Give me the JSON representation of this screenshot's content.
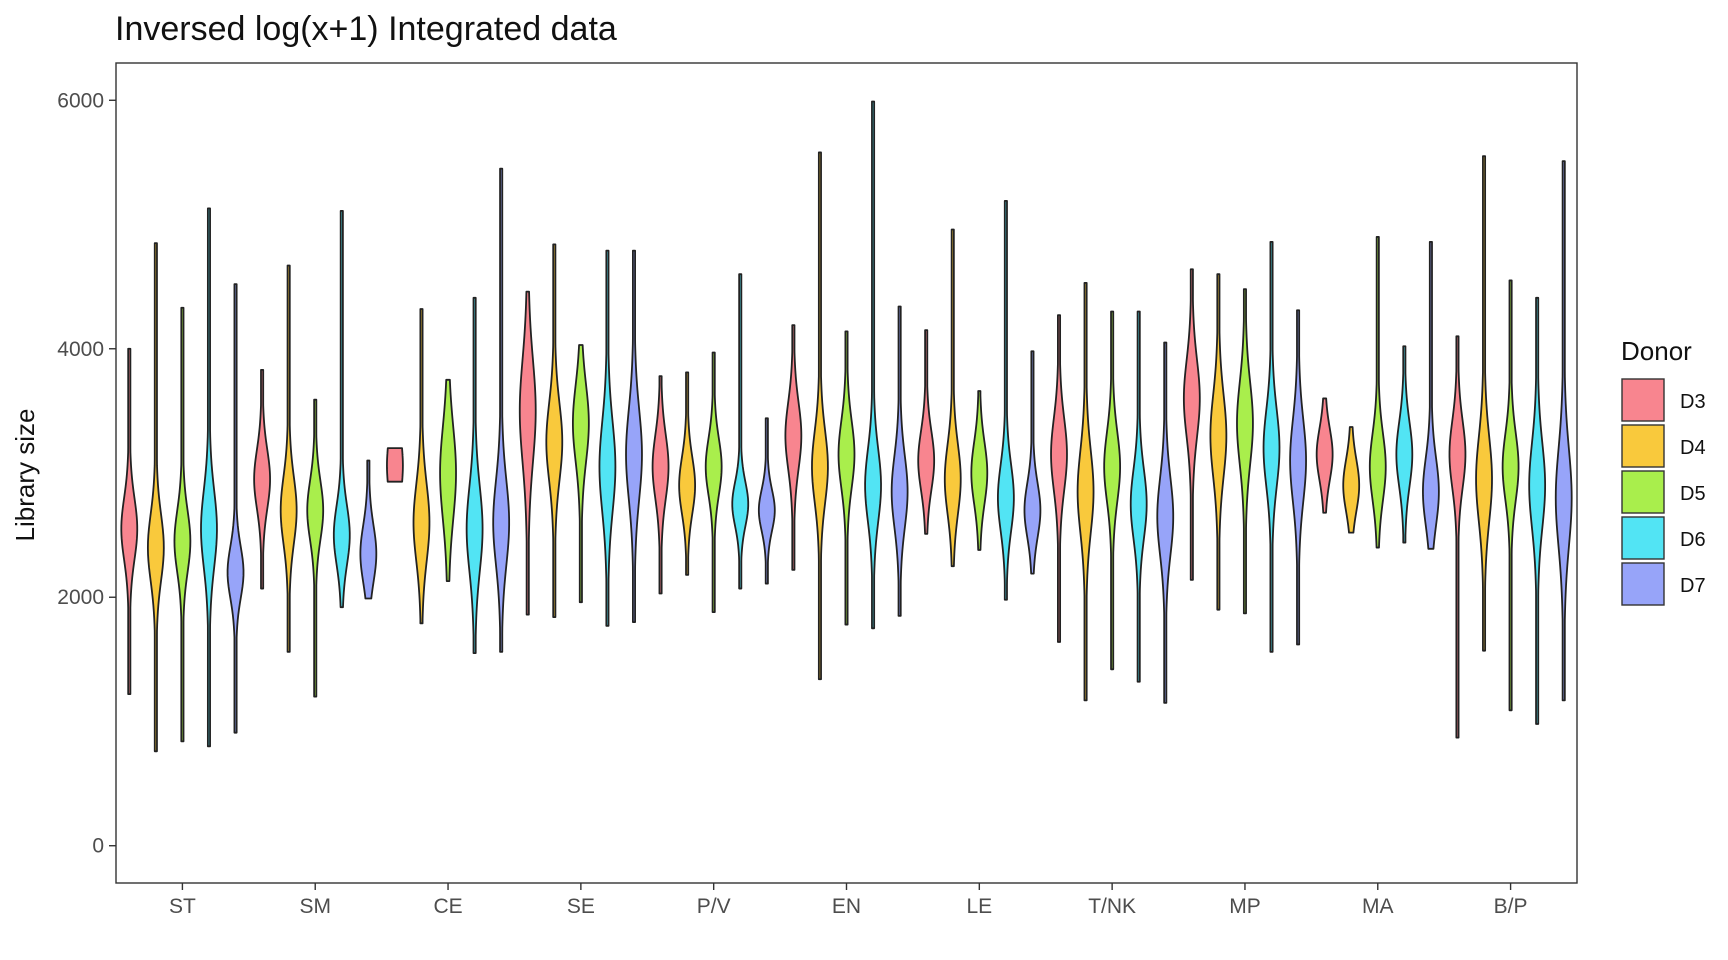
{
  "chart_data": {
    "type": "violin",
    "title": "Inversed log(x+1) Integrated data",
    "xlabel": "",
    "ylabel": "Library size",
    "ylim": [
      -300,
      6300
    ],
    "yticks": [
      0,
      2000,
      4000,
      6000
    ],
    "grid": false,
    "legend": {
      "title": "Donor",
      "placement": "right",
      "entries": [
        {
          "name": "D3",
          "color": "#F8858F"
        },
        {
          "name": "D4",
          "color": "#F9C93C"
        },
        {
          "name": "D5",
          "color": "#A9EE4C"
        },
        {
          "name": "D6",
          "color": "#52E4F4"
        },
        {
          "name": "D7",
          "color": "#97A4F9"
        }
      ]
    },
    "categories": [
      "ST",
      "SM",
      "CE",
      "SE",
      "P/V",
      "EN",
      "LE",
      "T/NK",
      "MP",
      "MA",
      "B/P"
    ],
    "violins": [
      {
        "category": "ST",
        "donor": "D3",
        "min": 1220,
        "max": 4000,
        "median": 2550,
        "spread": 240
      },
      {
        "category": "ST",
        "donor": "D4",
        "min": 760,
        "max": 4850,
        "median": 2400,
        "spread": 260
      },
      {
        "category": "ST",
        "donor": "D5",
        "min": 840,
        "max": 4330,
        "median": 2450,
        "spread": 240
      },
      {
        "category": "ST",
        "donor": "D6",
        "min": 800,
        "max": 5130,
        "median": 2550,
        "spread": 300
      },
      {
        "category": "ST",
        "donor": "D7",
        "min": 910,
        "max": 4520,
        "median": 2200,
        "spread": 200
      },
      {
        "category": "SM",
        "donor": "D3",
        "min": 2070,
        "max": 3830,
        "median": 2950,
        "spread": 230
      },
      {
        "category": "SM",
        "donor": "D4",
        "min": 1560,
        "max": 4670,
        "median": 2700,
        "spread": 260
      },
      {
        "category": "SM",
        "donor": "D5",
        "min": 1200,
        "max": 3590,
        "median": 2700,
        "spread": 230
      },
      {
        "category": "SM",
        "donor": "D6",
        "min": 1920,
        "max": 5110,
        "median": 2500,
        "spread": 230
      },
      {
        "category": "SM",
        "donor": "D7",
        "min": 1990,
        "max": 3100,
        "median": 2350,
        "spread": 220
      },
      {
        "category": "CE",
        "donor": "D3",
        "min": 2930,
        "max": 3200,
        "median": 3060,
        "spread": 110
      },
      {
        "category": "CE",
        "donor": "D4",
        "min": 1790,
        "max": 4320,
        "median": 2600,
        "spread": 300
      },
      {
        "category": "CE",
        "donor": "D5",
        "min": 2130,
        "max": 3750,
        "median": 3000,
        "spread": 360
      },
      {
        "category": "CE",
        "donor": "D6",
        "min": 1550,
        "max": 4410,
        "median": 2550,
        "spread": 330
      },
      {
        "category": "CE",
        "donor": "D7",
        "min": 1560,
        "max": 5450,
        "median": 2600,
        "spread": 330
      },
      {
        "category": "SE",
        "donor": "D3",
        "min": 1860,
        "max": 4460,
        "median": 3500,
        "spread": 400
      },
      {
        "category": "SE",
        "donor": "D4",
        "min": 1840,
        "max": 4840,
        "median": 3250,
        "spread": 300
      },
      {
        "category": "SE",
        "donor": "D5",
        "min": 1960,
        "max": 4030,
        "median": 3400,
        "spread": 300
      },
      {
        "category": "SE",
        "donor": "D6",
        "min": 1770,
        "max": 4790,
        "median": 3050,
        "spread": 350
      },
      {
        "category": "SE",
        "donor": "D7",
        "min": 1800,
        "max": 4790,
        "median": 3150,
        "spread": 350
      },
      {
        "category": "P/V",
        "donor": "D3",
        "min": 2030,
        "max": 3780,
        "median": 3050,
        "spread": 250
      },
      {
        "category": "P/V",
        "donor": "D4",
        "min": 2180,
        "max": 3810,
        "median": 2900,
        "spread": 220
      },
      {
        "category": "P/V",
        "donor": "D5",
        "min": 1880,
        "max": 3970,
        "median": 3050,
        "spread": 220
      },
      {
        "category": "P/V",
        "donor": "D6",
        "min": 2070,
        "max": 4600,
        "median": 2750,
        "spread": 170
      },
      {
        "category": "P/V",
        "donor": "D7",
        "min": 2110,
        "max": 3440,
        "median": 2700,
        "spread": 160
      },
      {
        "category": "EN",
        "donor": "D3",
        "min": 2220,
        "max": 4190,
        "median": 3300,
        "spread": 260
      },
      {
        "category": "EN",
        "donor": "D4",
        "min": 1340,
        "max": 5580,
        "median": 3050,
        "spread": 280
      },
      {
        "category": "EN",
        "donor": "D5",
        "min": 1780,
        "max": 4140,
        "median": 3150,
        "spread": 260
      },
      {
        "category": "EN",
        "donor": "D6",
        "min": 1750,
        "max": 5990,
        "median": 2900,
        "spread": 280
      },
      {
        "category": "EN",
        "donor": "D7",
        "min": 1850,
        "max": 4340,
        "median": 2850,
        "spread": 280
      },
      {
        "category": "LE",
        "donor": "D3",
        "min": 2510,
        "max": 4150,
        "median": 3100,
        "spread": 230
      },
      {
        "category": "LE",
        "donor": "D4",
        "min": 2250,
        "max": 4960,
        "median": 2950,
        "spread": 270
      },
      {
        "category": "LE",
        "donor": "D5",
        "min": 2380,
        "max": 3660,
        "median": 3000,
        "spread": 240
      },
      {
        "category": "LE",
        "donor": "D6",
        "min": 1980,
        "max": 5190,
        "median": 2800,
        "spread": 260
      },
      {
        "category": "LE",
        "donor": "D7",
        "min": 2190,
        "max": 3980,
        "median": 2700,
        "spread": 210
      },
      {
        "category": "T/NK",
        "donor": "D3",
        "min": 1640,
        "max": 4270,
        "median": 3150,
        "spread": 280
      },
      {
        "category": "T/NK",
        "donor": "D4",
        "min": 1170,
        "max": 4530,
        "median": 2850,
        "spread": 320
      },
      {
        "category": "T/NK",
        "donor": "D5",
        "min": 1420,
        "max": 4300,
        "median": 3050,
        "spread": 270
      },
      {
        "category": "T/NK",
        "donor": "D6",
        "min": 1320,
        "max": 4300,
        "median": 2750,
        "spread": 270
      },
      {
        "category": "T/NK",
        "donor": "D7",
        "min": 1150,
        "max": 4050,
        "median": 2650,
        "spread": 300
      },
      {
        "category": "MP",
        "donor": "D3",
        "min": 2140,
        "max": 4640,
        "median": 3600,
        "spread": 300
      },
      {
        "category": "MP",
        "donor": "D4",
        "min": 1900,
        "max": 4600,
        "median": 3300,
        "spread": 320
      },
      {
        "category": "MP",
        "donor": "D5",
        "min": 1870,
        "max": 4480,
        "median": 3400,
        "spread": 320
      },
      {
        "category": "MP",
        "donor": "D6",
        "min": 1560,
        "max": 4860,
        "median": 3200,
        "spread": 300
      },
      {
        "category": "MP",
        "donor": "D7",
        "min": 1620,
        "max": 4310,
        "median": 3100,
        "spread": 320
      },
      {
        "category": "MA",
        "donor": "D3",
        "min": 2680,
        "max": 3600,
        "median": 3150,
        "spread": 200
      },
      {
        "category": "MA",
        "donor": "D4",
        "min": 2520,
        "max": 3370,
        "median": 2900,
        "spread": 200
      },
      {
        "category": "MA",
        "donor": "D5",
        "min": 2400,
        "max": 4900,
        "median": 3050,
        "spread": 260
      },
      {
        "category": "MA",
        "donor": "D6",
        "min": 2440,
        "max": 4020,
        "median": 3150,
        "spread": 250
      },
      {
        "category": "MA",
        "donor": "D7",
        "min": 2390,
        "max": 4860,
        "median": 2850,
        "spread": 260
      },
      {
        "category": "B/P",
        "donor": "D3",
        "min": 870,
        "max": 4100,
        "median": 3150,
        "spread": 260
      },
      {
        "category": "B/P",
        "donor": "D4",
        "min": 1570,
        "max": 5550,
        "median": 2950,
        "spread": 330
      },
      {
        "category": "B/P",
        "donor": "D5",
        "min": 1090,
        "max": 4550,
        "median": 3050,
        "spread": 260
      },
      {
        "category": "B/P",
        "donor": "D6",
        "min": 980,
        "max": 4410,
        "median": 2900,
        "spread": 330
      },
      {
        "category": "B/P",
        "donor": "D7",
        "min": 1170,
        "max": 5510,
        "median": 2800,
        "spread": 380
      }
    ]
  }
}
